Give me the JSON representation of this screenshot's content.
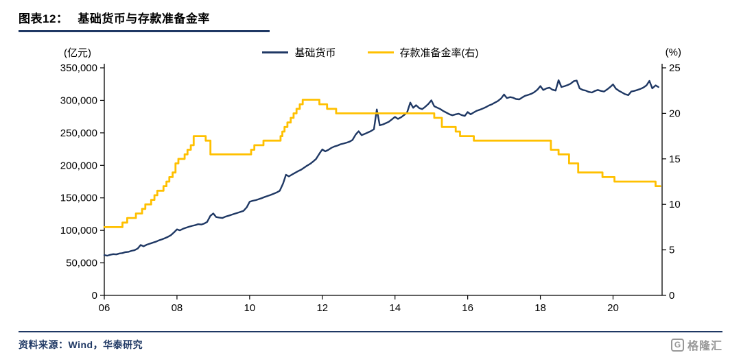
{
  "header": {
    "figure_label": "图表12：",
    "figure_title": "基础货币与存款准备金率"
  },
  "legend": {
    "items": [
      {
        "label": "基础货币",
        "color": "#1F3864"
      },
      {
        "label": "存款准备金率(右)",
        "color": "#FFC000"
      }
    ]
  },
  "footer": {
    "source": "资料来源：Wind，华泰研究",
    "logo_glyph": "G",
    "logo_text": "格隆汇"
  },
  "chart_data": {
    "type": "line",
    "title": "基础货币与存款准备金率",
    "grid": false,
    "legend_position": "top-center",
    "x_range": [
      2006,
      2021.35
    ],
    "x_ticks": [
      {
        "v": 2006,
        "label": "06"
      },
      {
        "v": 2008,
        "label": "08"
      },
      {
        "v": 2010,
        "label": "10"
      },
      {
        "v": 2012,
        "label": "12"
      },
      {
        "v": 2014,
        "label": "14"
      },
      {
        "v": 2016,
        "label": "16"
      },
      {
        "v": 2018,
        "label": "18"
      },
      {
        "v": 2020,
        "label": "20"
      }
    ],
    "left_axis": {
      "unit": "(亿元)",
      "range": [
        0,
        350000
      ],
      "ticks": [
        {
          "v": 0,
          "label": "0"
        },
        {
          "v": 50000,
          "label": "50,000"
        },
        {
          "v": 100000,
          "label": "100,000"
        },
        {
          "v": 150000,
          "label": "150,000"
        },
        {
          "v": 200000,
          "label": "200,000"
        },
        {
          "v": 250000,
          "label": "250,000"
        },
        {
          "v": 300000,
          "label": "300,000"
        },
        {
          "v": 350000,
          "label": "350,000"
        }
      ]
    },
    "right_axis": {
      "unit": "(%)",
      "range": [
        0,
        25
      ],
      "ticks": [
        {
          "v": 0,
          "label": "0"
        },
        {
          "v": 5,
          "label": "5"
        },
        {
          "v": 10,
          "label": "10"
        },
        {
          "v": 15,
          "label": "15"
        },
        {
          "v": 20,
          "label": "20"
        },
        {
          "v": 25,
          "label": "25"
        }
      ]
    },
    "series": [
      {
        "name": "基础货币",
        "axis": "left",
        "color": "#1F3864",
        "width": 2.4,
        "interpolation": "linear",
        "points": [
          [
            2006.0,
            62000
          ],
          [
            2006.08,
            61000
          ],
          [
            2006.17,
            62500
          ],
          [
            2006.25,
            63500
          ],
          [
            2006.33,
            63000
          ],
          [
            2006.42,
            64500
          ],
          [
            2006.5,
            65000
          ],
          [
            2006.58,
            66500
          ],
          [
            2006.67,
            67000
          ],
          [
            2006.75,
            68500
          ],
          [
            2006.83,
            69500
          ],
          [
            2006.92,
            72000
          ],
          [
            2007.0,
            77500
          ],
          [
            2007.08,
            75500
          ],
          [
            2007.17,
            78000
          ],
          [
            2007.25,
            79500
          ],
          [
            2007.33,
            81000
          ],
          [
            2007.42,
            82500
          ],
          [
            2007.5,
            84500
          ],
          [
            2007.58,
            86000
          ],
          [
            2007.67,
            88000
          ],
          [
            2007.75,
            90000
          ],
          [
            2007.83,
            92500
          ],
          [
            2007.92,
            97000
          ],
          [
            2008.0,
            101500
          ],
          [
            2008.08,
            100000
          ],
          [
            2008.17,
            102500
          ],
          [
            2008.25,
            104000
          ],
          [
            2008.33,
            105500
          ],
          [
            2008.42,
            107000
          ],
          [
            2008.5,
            108000
          ],
          [
            2008.58,
            109500
          ],
          [
            2008.67,
            109000
          ],
          [
            2008.75,
            110500
          ],
          [
            2008.83,
            113000
          ],
          [
            2008.92,
            122500
          ],
          [
            2009.0,
            126000
          ],
          [
            2009.08,
            120500
          ],
          [
            2009.17,
            119500
          ],
          [
            2009.25,
            119000
          ],
          [
            2009.33,
            121000
          ],
          [
            2009.42,
            122500
          ],
          [
            2009.5,
            124000
          ],
          [
            2009.58,
            125500
          ],
          [
            2009.67,
            127000
          ],
          [
            2009.75,
            128500
          ],
          [
            2009.83,
            130000
          ],
          [
            2009.92,
            135500
          ],
          [
            2010.0,
            144000
          ],
          [
            2010.08,
            145500
          ],
          [
            2010.17,
            146500
          ],
          [
            2010.25,
            148000
          ],
          [
            2010.33,
            149500
          ],
          [
            2010.42,
            151500
          ],
          [
            2010.5,
            153000
          ],
          [
            2010.58,
            154500
          ],
          [
            2010.67,
            156500
          ],
          [
            2010.75,
            158500
          ],
          [
            2010.83,
            161000
          ],
          [
            2010.92,
            172000
          ],
          [
            2011.0,
            185500
          ],
          [
            2011.08,
            183000
          ],
          [
            2011.17,
            186000
          ],
          [
            2011.25,
            188500
          ],
          [
            2011.33,
            191000
          ],
          [
            2011.42,
            193500
          ],
          [
            2011.5,
            196500
          ],
          [
            2011.58,
            199500
          ],
          [
            2011.67,
            202500
          ],
          [
            2011.75,
            206000
          ],
          [
            2011.83,
            210000
          ],
          [
            2011.92,
            218000
          ],
          [
            2012.0,
            224500
          ],
          [
            2012.08,
            221500
          ],
          [
            2012.17,
            224000
          ],
          [
            2012.25,
            227000
          ],
          [
            2012.33,
            229000
          ],
          [
            2012.42,
            230500
          ],
          [
            2012.5,
            232500
          ],
          [
            2012.58,
            233500
          ],
          [
            2012.67,
            235000
          ],
          [
            2012.75,
            236500
          ],
          [
            2012.83,
            239000
          ],
          [
            2012.92,
            247500
          ],
          [
            2013.0,
            252500
          ],
          [
            2013.08,
            246500
          ],
          [
            2013.17,
            248500
          ],
          [
            2013.25,
            250500
          ],
          [
            2013.33,
            252500
          ],
          [
            2013.42,
            255500
          ],
          [
            2013.5,
            286000
          ],
          [
            2013.58,
            261500
          ],
          [
            2013.67,
            263000
          ],
          [
            2013.75,
            265000
          ],
          [
            2013.83,
            267000
          ],
          [
            2013.92,
            271000
          ],
          [
            2014.0,
            274500
          ],
          [
            2014.08,
            271500
          ],
          [
            2014.17,
            274000
          ],
          [
            2014.25,
            277500
          ],
          [
            2014.33,
            281000
          ],
          [
            2014.42,
            296500
          ],
          [
            2014.5,
            288500
          ],
          [
            2014.58,
            292500
          ],
          [
            2014.67,
            288000
          ],
          [
            2014.75,
            286500
          ],
          [
            2014.83,
            290000
          ],
          [
            2014.92,
            294500
          ],
          [
            2015.0,
            300000
          ],
          [
            2015.08,
            291000
          ],
          [
            2015.17,
            288500
          ],
          [
            2015.25,
            286500
          ],
          [
            2015.33,
            283500
          ],
          [
            2015.42,
            281000
          ],
          [
            2015.5,
            278500
          ],
          [
            2015.58,
            277000
          ],
          [
            2015.67,
            278500
          ],
          [
            2015.75,
            279500
          ],
          [
            2015.83,
            277500
          ],
          [
            2015.92,
            276000
          ],
          [
            2016.0,
            282000
          ],
          [
            2016.08,
            278500
          ],
          [
            2016.17,
            281500
          ],
          [
            2016.25,
            284000
          ],
          [
            2016.33,
            285500
          ],
          [
            2016.42,
            287500
          ],
          [
            2016.5,
            289500
          ],
          [
            2016.58,
            292000
          ],
          [
            2016.67,
            294000
          ],
          [
            2016.75,
            296500
          ],
          [
            2016.83,
            299000
          ],
          [
            2016.92,
            303000
          ],
          [
            2017.0,
            309000
          ],
          [
            2017.08,
            303500
          ],
          [
            2017.17,
            305000
          ],
          [
            2017.25,
            304000
          ],
          [
            2017.33,
            302000
          ],
          [
            2017.42,
            301500
          ],
          [
            2017.5,
            304500
          ],
          [
            2017.58,
            307000
          ],
          [
            2017.67,
            308500
          ],
          [
            2017.75,
            310000
          ],
          [
            2017.83,
            312500
          ],
          [
            2017.92,
            316500
          ],
          [
            2018.0,
            322000
          ],
          [
            2018.08,
            316000
          ],
          [
            2018.17,
            318500
          ],
          [
            2018.25,
            319500
          ],
          [
            2018.33,
            316500
          ],
          [
            2018.42,
            315000
          ],
          [
            2018.5,
            331000
          ],
          [
            2018.58,
            320500
          ],
          [
            2018.67,
            322000
          ],
          [
            2018.75,
            323500
          ],
          [
            2018.83,
            325500
          ],
          [
            2018.92,
            329500
          ],
          [
            2019.0,
            330500
          ],
          [
            2019.08,
            318500
          ],
          [
            2019.17,
            316000
          ],
          [
            2019.25,
            315000
          ],
          [
            2019.33,
            313000
          ],
          [
            2019.42,
            312000
          ],
          [
            2019.5,
            314500
          ],
          [
            2019.58,
            316000
          ],
          [
            2019.67,
            314500
          ],
          [
            2019.75,
            313500
          ],
          [
            2019.83,
            316500
          ],
          [
            2019.92,
            320500
          ],
          [
            2020.0,
            324500
          ],
          [
            2020.08,
            318000
          ],
          [
            2020.17,
            314500
          ],
          [
            2020.25,
            312000
          ],
          [
            2020.33,
            309500
          ],
          [
            2020.42,
            308000
          ],
          [
            2020.5,
            313500
          ],
          [
            2020.58,
            314500
          ],
          [
            2020.67,
            316000
          ],
          [
            2020.75,
            317500
          ],
          [
            2020.83,
            319500
          ],
          [
            2020.92,
            323000
          ],
          [
            2021.0,
            330000
          ],
          [
            2021.08,
            318500
          ],
          [
            2021.17,
            323000
          ],
          [
            2021.25,
            320500
          ]
        ]
      },
      {
        "name": "存款准备金率(右)",
        "axis": "right",
        "color": "#FFC000",
        "width": 2.8,
        "interpolation": "step-after",
        "x_end": 2021.3,
        "points": [
          [
            2006.0,
            7.5
          ],
          [
            2006.5,
            8.0
          ],
          [
            2006.63,
            8.5
          ],
          [
            2006.87,
            9.0
          ],
          [
            2007.04,
            9.5
          ],
          [
            2007.13,
            10.0
          ],
          [
            2007.29,
            10.5
          ],
          [
            2007.38,
            11.0
          ],
          [
            2007.46,
            11.5
          ],
          [
            2007.63,
            12.0
          ],
          [
            2007.71,
            12.5
          ],
          [
            2007.79,
            13.0
          ],
          [
            2007.88,
            13.5
          ],
          [
            2007.96,
            14.5
          ],
          [
            2008.04,
            15.0
          ],
          [
            2008.21,
            15.5
          ],
          [
            2008.29,
            16.0
          ],
          [
            2008.38,
            16.5
          ],
          [
            2008.46,
            17.5
          ],
          [
            2008.79,
            17.0
          ],
          [
            2008.92,
            15.5
          ],
          [
            2010.04,
            16.0
          ],
          [
            2010.13,
            16.5
          ],
          [
            2010.38,
            17.0
          ],
          [
            2010.85,
            17.5
          ],
          [
            2010.9,
            18.0
          ],
          [
            2010.96,
            18.5
          ],
          [
            2011.04,
            19.0
          ],
          [
            2011.13,
            19.5
          ],
          [
            2011.21,
            20.0
          ],
          [
            2011.29,
            20.5
          ],
          [
            2011.38,
            21.0
          ],
          [
            2011.46,
            21.5
          ],
          [
            2011.92,
            21.0
          ],
          [
            2012.13,
            20.5
          ],
          [
            2012.38,
            20.0
          ],
          [
            2015.08,
            19.5
          ],
          [
            2015.29,
            18.5
          ],
          [
            2015.67,
            18.0
          ],
          [
            2015.79,
            17.5
          ],
          [
            2016.17,
            17.0
          ],
          [
            2018.29,
            16.0
          ],
          [
            2018.5,
            15.5
          ],
          [
            2018.79,
            14.5
          ],
          [
            2019.04,
            13.5
          ],
          [
            2019.71,
            13.0
          ],
          [
            2020.04,
            12.5
          ],
          [
            2021.17,
            12.0
          ]
        ]
      }
    ]
  }
}
